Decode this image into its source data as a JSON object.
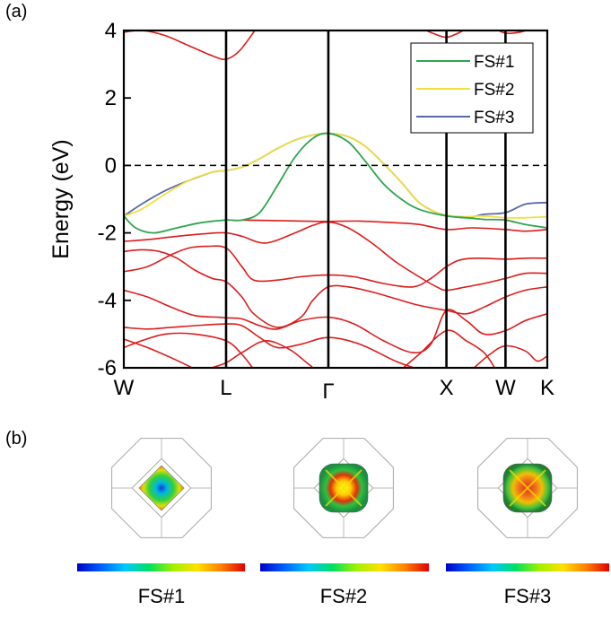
{
  "panels": {
    "a": "(a)",
    "b": "(b)"
  },
  "legend": [
    "FS#1",
    "FS#2",
    "FS#3"
  ],
  "fermi_surfaces": [
    {
      "caption": "FS#1"
    },
    {
      "caption": "FS#2"
    },
    {
      "caption": "FS#3"
    }
  ],
  "colors": {
    "other_bands": "#dd1c1c",
    "FS#1": "#2ea44f",
    "FS#2": "#f0e040",
    "FS#3": "#5a68a8",
    "fermi_level": "#000000"
  },
  "chart_data": {
    "type": "line",
    "title": "",
    "xlabel": "",
    "ylabel": "Energy (eV)",
    "ylim": [
      -6,
      4
    ],
    "yticks": [
      4,
      2,
      0,
      -2,
      -4,
      -6
    ],
    "xlim": [
      0,
      4
    ],
    "high_symmetry_points": [
      {
        "label": "W",
        "x": 0
      },
      {
        "label": "L",
        "x": 0.866
      },
      {
        "label": "Γ",
        "x": 1.732
      },
      {
        "label": "X",
        "x": 2.732
      },
      {
        "label": "W",
        "x": 3.232
      },
      {
        "label": "K",
        "x": 3.586
      }
    ],
    "fermi_level": 0,
    "legend_position": "top-right",
    "series": [
      {
        "name": "FS#1",
        "points": [
          [
            0,
            -1.5
          ],
          [
            0.1,
            -1.85
          ],
          [
            0.25,
            -2.0
          ],
          [
            0.45,
            -1.85
          ],
          [
            0.65,
            -1.7
          ],
          [
            0.866,
            -1.62
          ],
          [
            1.0,
            -1.62
          ],
          [
            1.15,
            -1.4
          ],
          [
            1.3,
            -0.6
          ],
          [
            1.45,
            0.25
          ],
          [
            1.6,
            0.8
          ],
          [
            1.732,
            0.95
          ],
          [
            1.9,
            0.7
          ],
          [
            2.05,
            0.1
          ],
          [
            2.2,
            -0.55
          ],
          [
            2.35,
            -1.0
          ],
          [
            2.5,
            -1.3
          ],
          [
            2.732,
            -1.5
          ],
          [
            2.9,
            -1.55
          ],
          [
            3.05,
            -1.6
          ],
          [
            3.232,
            -1.62
          ],
          [
            3.4,
            -1.75
          ],
          [
            3.586,
            -1.85
          ]
        ]
      },
      {
        "name": "FS#2",
        "points": [
          [
            0,
            -1.5
          ],
          [
            0.15,
            -1.3
          ],
          [
            0.35,
            -0.85
          ],
          [
            0.55,
            -0.45
          ],
          [
            0.75,
            -0.2
          ],
          [
            0.866,
            -0.15
          ],
          [
            1.0,
            -0.05
          ],
          [
            1.15,
            0.2
          ],
          [
            1.3,
            0.5
          ],
          [
            1.45,
            0.75
          ],
          [
            1.6,
            0.9
          ],
          [
            1.732,
            0.95
          ],
          [
            1.9,
            0.85
          ],
          [
            2.05,
            0.55
          ],
          [
            2.2,
            0.05
          ],
          [
            2.35,
            -0.5
          ],
          [
            2.5,
            -1.1
          ],
          [
            2.65,
            -1.4
          ],
          [
            2.732,
            -1.48
          ],
          [
            2.9,
            -1.52
          ],
          [
            3.05,
            -1.5
          ],
          [
            3.232,
            -1.55
          ],
          [
            3.4,
            -1.55
          ],
          [
            3.586,
            -1.52
          ]
        ]
      },
      {
        "name": "FS#3",
        "points": [
          [
            0,
            -1.5
          ],
          [
            0.15,
            -1.15
          ],
          [
            0.35,
            -0.75
          ],
          [
            0.55,
            -0.45
          ],
          [
            0.75,
            -0.2
          ],
          [
            0.866,
            -0.15
          ],
          [
            1.0,
            -0.05
          ],
          [
            1.15,
            0.2
          ],
          [
            1.3,
            0.5
          ],
          [
            1.45,
            0.75
          ],
          [
            1.6,
            0.9
          ],
          [
            1.732,
            0.95
          ],
          [
            1.9,
            0.85
          ],
          [
            2.05,
            0.55
          ],
          [
            2.2,
            0.05
          ],
          [
            2.35,
            -0.5
          ],
          [
            2.5,
            -1.1
          ],
          [
            2.65,
            -1.4
          ],
          [
            2.732,
            -1.48
          ],
          [
            2.9,
            -1.55
          ],
          [
            3.05,
            -1.45
          ],
          [
            3.232,
            -1.4
          ],
          [
            3.4,
            -1.15
          ],
          [
            3.586,
            -1.1
          ]
        ]
      },
      {
        "name": "",
        "points": [
          [
            0,
            3.95
          ],
          [
            0.15,
            4.0
          ],
          [
            0.35,
            3.85
          ],
          [
            0.55,
            3.55
          ],
          [
            0.75,
            3.25
          ],
          [
            0.866,
            3.15
          ],
          [
            0.98,
            3.4
          ],
          [
            1.12,
            4.05
          ]
        ]
      },
      {
        "name": "",
        "points": [
          [
            2.53,
            4.05
          ],
          [
            2.63,
            3.9
          ],
          [
            2.732,
            3.8
          ],
          [
            2.83,
            3.92
          ],
          [
            2.9,
            4.05
          ]
        ]
      },
      {
        "name": "",
        "points": [
          [
            3.15,
            4.05
          ],
          [
            3.232,
            3.92
          ],
          [
            3.35,
            3.95
          ],
          [
            3.45,
            4.05
          ]
        ]
      },
      {
        "name": "",
        "points": [
          [
            1.0,
            -1.62
          ],
          [
            1.2,
            -1.63
          ],
          [
            1.5,
            -1.65
          ],
          [
            1.732,
            -1.66
          ],
          [
            2.0,
            -1.65
          ],
          [
            2.3,
            -1.7
          ],
          [
            2.5,
            -1.75
          ],
          [
            2.732,
            -1.9
          ],
          [
            2.95,
            -1.85
          ],
          [
            3.232,
            -1.9
          ],
          [
            3.4,
            -1.95
          ],
          [
            3.586,
            -1.9
          ]
        ]
      },
      {
        "name": "",
        "points": [
          [
            0,
            -2.25
          ],
          [
            0.2,
            -2.2
          ],
          [
            0.45,
            -2.1
          ],
          [
            0.7,
            -2.02
          ],
          [
            0.866,
            -2.0
          ],
          [
            1.0,
            -2.1
          ],
          [
            1.2,
            -2.3
          ],
          [
            1.45,
            -2.0
          ],
          [
            1.6,
            -1.78
          ],
          [
            1.732,
            -1.68
          ],
          [
            1.9,
            -1.85
          ],
          [
            2.1,
            -2.3
          ],
          [
            2.3,
            -2.85
          ],
          [
            2.5,
            -3.3
          ],
          [
            2.65,
            -3.6
          ],
          [
            2.732,
            -3.7
          ],
          [
            2.9,
            -3.6
          ],
          [
            3.05,
            -3.5
          ],
          [
            3.232,
            -3.35
          ],
          [
            3.4,
            -3.2
          ],
          [
            3.586,
            -3.2
          ]
        ]
      },
      {
        "name": "",
        "points": [
          [
            0,
            -3.15
          ],
          [
            0.2,
            -3.0
          ],
          [
            0.4,
            -2.65
          ],
          [
            0.55,
            -2.45
          ],
          [
            0.7,
            -2.4
          ],
          [
            0.866,
            -2.45
          ],
          [
            1.0,
            -3.0
          ],
          [
            1.1,
            -3.4
          ],
          [
            1.3,
            -3.4
          ],
          [
            1.5,
            -3.3
          ],
          [
            1.732,
            -3.25
          ],
          [
            1.95,
            -3.3
          ],
          [
            2.2,
            -3.5
          ],
          [
            2.45,
            -3.6
          ],
          [
            2.6,
            -3.35
          ],
          [
            2.732,
            -3.0
          ],
          [
            2.85,
            -2.8
          ],
          [
            3.0,
            -2.75
          ],
          [
            3.232,
            -2.78
          ],
          [
            3.4,
            -2.75
          ],
          [
            3.586,
            -2.75
          ]
        ]
      },
      {
        "name": "",
        "points": [
          [
            0,
            -2.55
          ],
          [
            0.15,
            -2.5
          ],
          [
            0.3,
            -2.55
          ],
          [
            0.45,
            -2.75
          ],
          [
            0.6,
            -3.1
          ],
          [
            0.75,
            -3.35
          ],
          [
            0.866,
            -3.45
          ],
          [
            1.0,
            -3.9
          ],
          [
            1.1,
            -4.4
          ],
          [
            1.3,
            -4.8
          ],
          [
            1.5,
            -4.5
          ],
          [
            1.6,
            -4.0
          ],
          [
            1.732,
            -3.6
          ],
          [
            1.9,
            -3.6
          ],
          [
            2.1,
            -3.75
          ],
          [
            2.3,
            -3.95
          ],
          [
            2.5,
            -4.15
          ],
          [
            2.732,
            -4.3
          ],
          [
            2.9,
            -4.4
          ],
          [
            3.05,
            -4.2
          ],
          [
            3.232,
            -3.9
          ],
          [
            3.4,
            -3.7
          ],
          [
            3.586,
            -3.6
          ]
        ]
      },
      {
        "name": "",
        "points": [
          [
            0,
            -3.7
          ],
          [
            0.2,
            -3.9
          ],
          [
            0.4,
            -4.2
          ],
          [
            0.6,
            -4.45
          ],
          [
            0.8,
            -4.5
          ],
          [
            0.866,
            -4.52
          ],
          [
            1.0,
            -4.55
          ],
          [
            1.15,
            -4.75
          ],
          [
            1.3,
            -4.85
          ],
          [
            1.5,
            -4.6
          ],
          [
            1.732,
            -4.5
          ],
          [
            1.95,
            -4.7
          ],
          [
            2.2,
            -5.2
          ],
          [
            2.45,
            -5.55
          ],
          [
            2.6,
            -5.3
          ],
          [
            2.732,
            -4.3
          ],
          [
            2.9,
            -4.6
          ],
          [
            3.05,
            -5.0
          ],
          [
            3.232,
            -4.9
          ],
          [
            3.4,
            -4.6
          ],
          [
            3.586,
            -4.4
          ]
        ]
      },
      {
        "name": "",
        "points": [
          [
            0,
            -4.8
          ],
          [
            0.2,
            -4.85
          ],
          [
            0.4,
            -4.8
          ],
          [
            0.6,
            -4.75
          ],
          [
            0.866,
            -4.7
          ],
          [
            1.0,
            -4.75
          ],
          [
            1.15,
            -5.1
          ],
          [
            1.3,
            -5.4
          ],
          [
            1.5,
            -5.3
          ],
          [
            1.732,
            -5.1
          ],
          [
            2.0,
            -5.3
          ],
          [
            2.3,
            -5.8
          ],
          [
            2.5,
            -6.05
          ]
        ]
      },
      {
        "name": "",
        "points": [
          [
            0,
            -5.15
          ],
          [
            0.2,
            -5.4
          ],
          [
            0.4,
            -5.7
          ],
          [
            0.55,
            -5.95
          ],
          [
            0.6,
            -6.05
          ]
        ]
      },
      {
        "name": "",
        "points": [
          [
            0,
            -5.4
          ],
          [
            0.15,
            -5.2
          ],
          [
            0.35,
            -5.0
          ],
          [
            0.6,
            -5.0
          ],
          [
            0.866,
            -5.2
          ],
          [
            1.0,
            -5.6
          ],
          [
            1.1,
            -6.05
          ]
        ]
      },
      {
        "name": "",
        "points": [
          [
            0.7,
            -6.05
          ],
          [
            0.866,
            -5.85
          ],
          [
            1.0,
            -5.55
          ],
          [
            1.2,
            -5.2
          ],
          [
            1.4,
            -5.45
          ],
          [
            1.55,
            -5.85
          ],
          [
            1.62,
            -6.05
          ]
        ]
      },
      {
        "name": "",
        "points": [
          [
            2.35,
            -6.05
          ],
          [
            2.5,
            -5.6
          ],
          [
            2.732,
            -4.9
          ],
          [
            2.9,
            -5.2
          ],
          [
            3.05,
            -5.55
          ],
          [
            3.15,
            -6.05
          ]
        ]
      },
      {
        "name": "",
        "points": [
          [
            2.95,
            -6.05
          ],
          [
            3.1,
            -5.6
          ],
          [
            3.232,
            -5.35
          ],
          [
            3.4,
            -5.5
          ],
          [
            3.5,
            -5.8
          ],
          [
            3.586,
            -5.65
          ]
        ]
      }
    ]
  }
}
